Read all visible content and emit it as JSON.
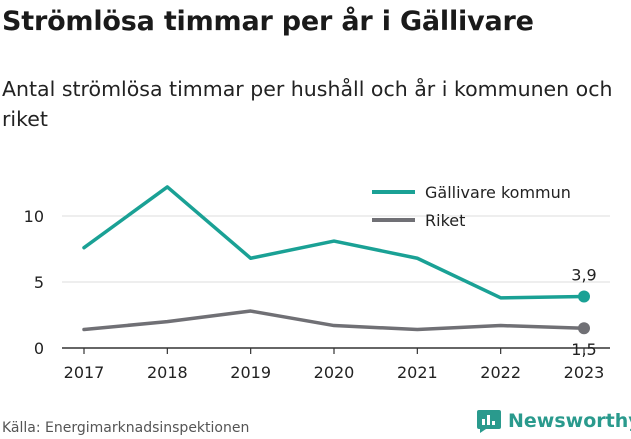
{
  "title": "Strömlösa timmar per år i Gällivare",
  "subtitle": "Antal strömlösa timmar per hushåll och år i kommunen och riket",
  "source": "Källa: Energimarknadsinspektionen",
  "brand": "Newsworthy",
  "colors": {
    "gallivare": "#1aa195",
    "riket": "#707075",
    "grid": "#dedede",
    "axis": "#333333"
  },
  "chart_data": {
    "type": "line",
    "x": [
      "2017",
      "2018",
      "2019",
      "2020",
      "2021",
      "2022",
      "2023"
    ],
    "yticks": [
      "0",
      "5",
      "10"
    ],
    "ylim": [
      0,
      12.5
    ],
    "series": [
      {
        "name": "Gällivare kommun",
        "values": [
          7.6,
          12.2,
          6.8,
          8.1,
          6.8,
          3.8,
          3.9
        ],
        "end_label": "3,9"
      },
      {
        "name": "Riket",
        "values": [
          1.4,
          2.0,
          2.8,
          1.7,
          1.4,
          1.7,
          1.5
        ],
        "end_label": "1,5"
      }
    ],
    "legend": "top-right",
    "grid": true
  }
}
